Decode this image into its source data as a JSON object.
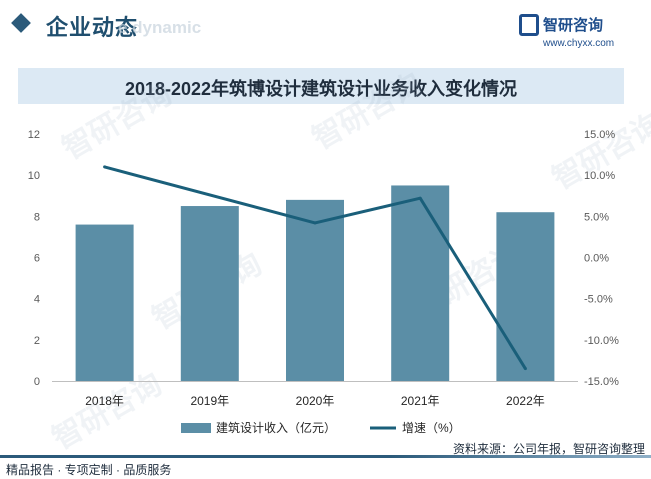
{
  "header": {
    "section_title": "企业动态",
    "section_subtitle": "e dynamic",
    "logo_name": "智研咨询",
    "logo_url": "www.chyxx.com"
  },
  "footer": {
    "left_text": "精品报告 · 专项定制 · 品质服务",
    "source_text": "资料来源：公司年报，智研咨询整理"
  },
  "watermark": "智研咨询",
  "colors": {
    "bar": "#5b8ea6",
    "line": "#1a5f7a",
    "title_band": "#dce9f4",
    "accent": "#2b5a7a"
  },
  "chart_data": {
    "type": "bar",
    "title": "2018-2022年筑博设计建筑设计业务收入变化情况",
    "categories": [
      "2018年",
      "2019年",
      "2020年",
      "2021年",
      "2022年"
    ],
    "series": [
      {
        "name": "建筑设计收入（亿元）",
        "type": "bar",
        "axis": "left",
        "values": [
          7.6,
          8.5,
          8.8,
          9.5,
          8.2
        ]
      },
      {
        "name": "增速（%）",
        "type": "line",
        "axis": "right",
        "values": [
          11.0,
          null,
          4.2,
          7.2,
          -13.5
        ]
      }
    ],
    "y_left": {
      "min": 0,
      "max": 12,
      "ticks": [
        "0",
        "2",
        "4",
        "6",
        "8",
        "10",
        "12"
      ]
    },
    "y_right": {
      "min": -15,
      "max": 15,
      "ticks": [
        "-15.0%",
        "-10.0%",
        "-5.0%",
        "0.0%",
        "5.0%",
        "10.0%",
        "15.0%"
      ]
    },
    "grid": false,
    "legend_position": "bottom"
  }
}
